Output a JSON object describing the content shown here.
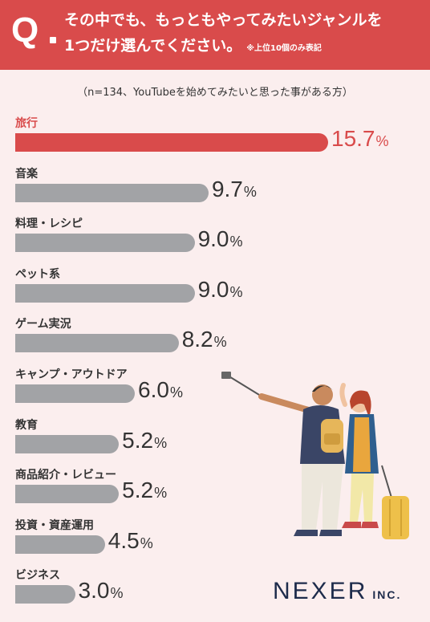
{
  "header": {
    "q_mark": "Q",
    "line1": "その中でも、もっともやってみたいジャンルを",
    "line2": "1つだけ選んでください。",
    "note": "※上位10個のみ表記"
  },
  "subtitle": "（n=134、YouTubeを始めてみたいと思った事がある方）",
  "colors": {
    "accent": "#d94b4b",
    "bar": "#a2a3a6",
    "background": "#fbeeee",
    "logo": "#1d2b4b"
  },
  "chart_data": {
    "type": "bar",
    "orientation": "horizontal",
    "categories": [
      "旅行",
      "音楽",
      "料理・レシピ",
      "ペット系",
      "ゲーム実況",
      "キャンプ・アウトドア",
      "教育",
      "商品紹介・レビュー",
      "投資・資産運用",
      "ビジネス"
    ],
    "values": [
      15.7,
      9.7,
      9.0,
      9.0,
      8.2,
      6.0,
      5.2,
      5.2,
      4.5,
      3.0
    ],
    "value_labels": [
      "15.7",
      "9.7",
      "9.0",
      "9.0",
      "8.2",
      "6.0",
      "5.2",
      "5.2",
      "4.5",
      "3.0"
    ],
    "unit": "%",
    "highlight_index": 0
  },
  "logo": {
    "main": "NEXER",
    "suffix": "INC."
  },
  "illustration": "couple-taking-selfie-with-luggage"
}
